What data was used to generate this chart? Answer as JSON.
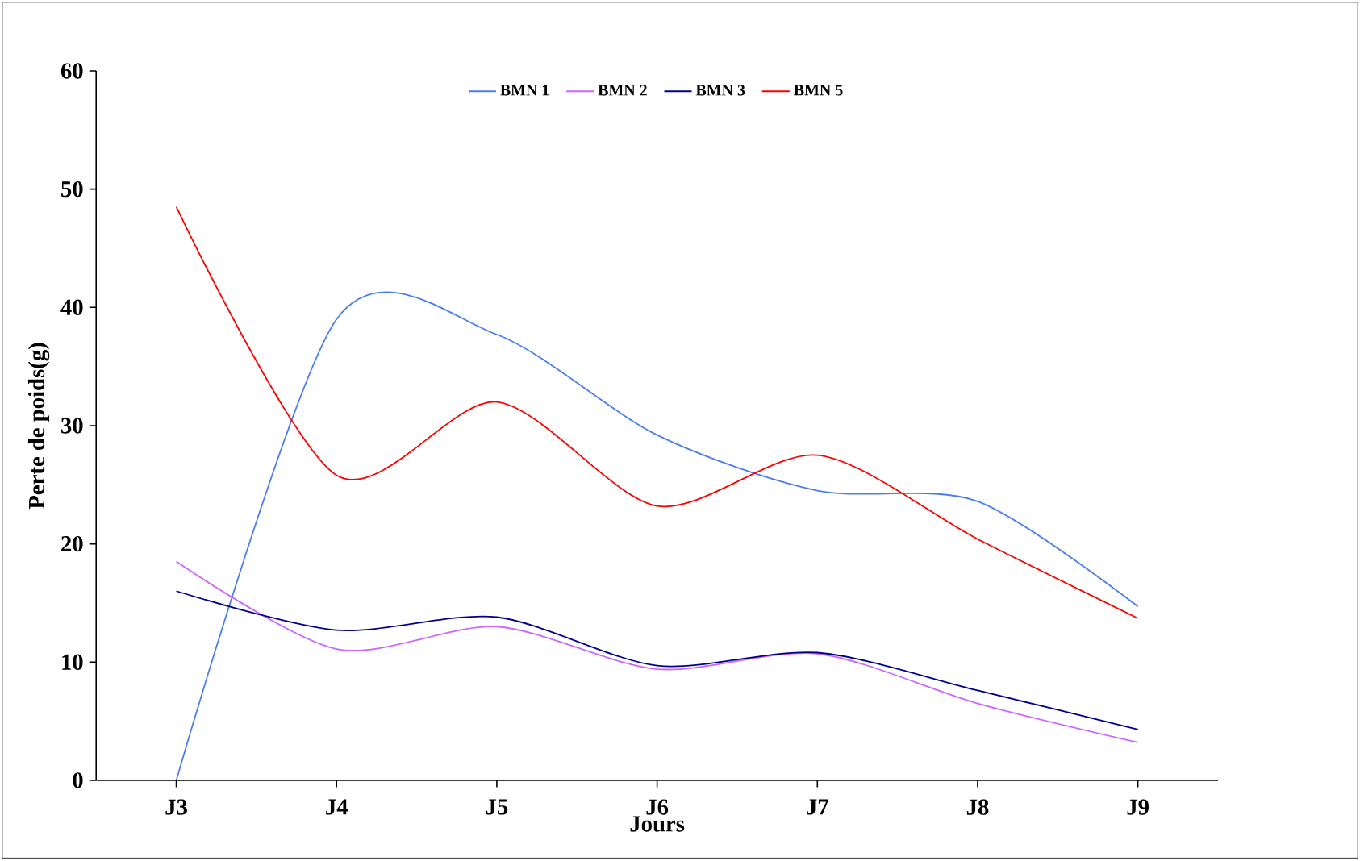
{
  "chart_data": {
    "type": "line",
    "xlabel": "Jours",
    "ylabel": "Perte de poids(g)",
    "categories": [
      "J3",
      "J4",
      "J5",
      "J6",
      "J7",
      "J8",
      "J9"
    ],
    "series": [
      {
        "name": "BMN 1",
        "color": "#4a7df0",
        "values": [
          0,
          39,
          37.7,
          29.2,
          24.5,
          23.6,
          14.7
        ]
      },
      {
        "name": "BMN 2",
        "color": "#cc66ff",
        "values": [
          18.5,
          11.1,
          13,
          9.4,
          10.7,
          6.5,
          3.2
        ]
      },
      {
        "name": "BMN 3",
        "color": "#00008b",
        "values": [
          16,
          12.7,
          13.8,
          9.7,
          10.8,
          7.6,
          4.3
        ]
      },
      {
        "name": "BMN 5",
        "color": "#ff0000",
        "values": [
          48.5,
          25.8,
          32,
          23.2,
          27.5,
          20.4,
          13.7
        ]
      }
    ],
    "ylim": [
      0,
      60
    ],
    "yticks": [
      0,
      10,
      20,
      30,
      40,
      50,
      60
    ],
    "grid": false,
    "legend": "top",
    "marker": "none",
    "line_style": "solid"
  }
}
